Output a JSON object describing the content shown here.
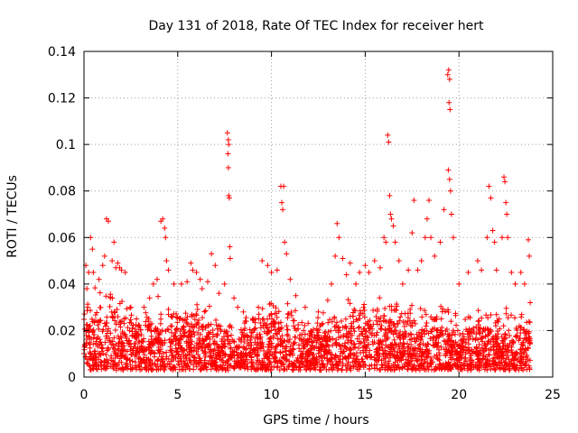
{
  "chart_data": {
    "type": "scatter",
    "title": "Day 131 of 2018, Rate Of TEC Index for receiver hert",
    "xlabel": "GPS time / hours",
    "ylabel": "ROTI / TECUs",
    "xlim": [
      0,
      25
    ],
    "ylim": [
      0,
      0.14
    ],
    "x_ticks": [
      0,
      5,
      10,
      15,
      20,
      25
    ],
    "y_ticks": [
      0,
      0.02,
      0.04,
      0.06,
      0.08,
      0.1,
      0.12,
      0.14
    ],
    "x_tick_labels": [
      "0",
      "5",
      "10",
      "15",
      "20",
      "25"
    ],
    "y_tick_labels": [
      "0",
      "0.02",
      "0.04",
      "0.06",
      "0.08",
      "0.1",
      "0.12",
      "0.14"
    ],
    "grid": true,
    "marker": "plus",
    "color": "#ff0000",
    "series": [
      {
        "name": "",
        "points": [
          [
            0.1,
            0.048
          ],
          [
            0.15,
            0.038
          ],
          [
            0.2,
            0.03
          ],
          [
            0.25,
            0.045
          ],
          [
            0.35,
            0.06
          ],
          [
            0.45,
            0.055
          ],
          [
            0.5,
            0.045
          ],
          [
            0.8,
            0.042
          ],
          [
            1.0,
            0.048
          ],
          [
            1.1,
            0.052
          ],
          [
            1.2,
            0.068
          ],
          [
            1.3,
            0.067
          ],
          [
            1.5,
            0.05
          ],
          [
            1.6,
            0.058
          ],
          [
            1.7,
            0.047
          ],
          [
            1.8,
            0.049
          ],
          [
            1.9,
            0.047
          ],
          [
            2.0,
            0.046
          ],
          [
            2.2,
            0.045
          ],
          [
            2.5,
            0.03
          ],
          [
            2.8,
            0.025
          ],
          [
            3.2,
            0.03
          ],
          [
            3.5,
            0.034
          ],
          [
            3.7,
            0.04
          ],
          [
            3.9,
            0.042
          ],
          [
            4.1,
            0.067
          ],
          [
            4.2,
            0.068
          ],
          [
            4.3,
            0.064
          ],
          [
            4.35,
            0.06
          ],
          [
            4.4,
            0.05
          ],
          [
            4.5,
            0.046
          ],
          [
            4.8,
            0.04
          ],
          [
            5.2,
            0.04
          ],
          [
            5.5,
            0.041
          ],
          [
            5.7,
            0.049
          ],
          [
            5.8,
            0.046
          ],
          [
            6.0,
            0.045
          ],
          [
            6.2,
            0.042
          ],
          [
            6.3,
            0.038
          ],
          [
            6.6,
            0.041
          ],
          [
            6.8,
            0.053
          ],
          [
            7.0,
            0.048
          ],
          [
            7.2,
            0.036
          ],
          [
            7.5,
            0.04
          ],
          [
            7.65,
            0.105
          ],
          [
            7.7,
            0.102
          ],
          [
            7.72,
            0.1
          ],
          [
            7.68,
            0.096
          ],
          [
            7.7,
            0.09
          ],
          [
            7.72,
            0.078
          ],
          [
            7.75,
            0.077
          ],
          [
            7.78,
            0.056
          ],
          [
            7.8,
            0.051
          ],
          [
            8.0,
            0.034
          ],
          [
            8.2,
            0.03
          ],
          [
            8.5,
            0.028
          ],
          [
            9.0,
            0.025
          ],
          [
            9.3,
            0.03
          ],
          [
            9.5,
            0.05
          ],
          [
            9.8,
            0.048
          ],
          [
            10.0,
            0.045
          ],
          [
            10.3,
            0.046
          ],
          [
            10.5,
            0.082
          ],
          [
            10.55,
            0.075
          ],
          [
            10.6,
            0.072
          ],
          [
            10.65,
            0.082
          ],
          [
            10.7,
            0.058
          ],
          [
            10.8,
            0.053
          ],
          [
            11.0,
            0.042
          ],
          [
            11.3,
            0.035
          ],
          [
            11.8,
            0.03
          ],
          [
            12.5,
            0.028
          ],
          [
            13.0,
            0.033
          ],
          [
            13.2,
            0.04
          ],
          [
            13.4,
            0.052
          ],
          [
            13.5,
            0.066
          ],
          [
            13.6,
            0.06
          ],
          [
            13.8,
            0.051
          ],
          [
            14.0,
            0.044
          ],
          [
            14.2,
            0.049
          ],
          [
            14.5,
            0.04
          ],
          [
            14.7,
            0.045
          ],
          [
            15.0,
            0.048
          ],
          [
            15.2,
            0.045
          ],
          [
            15.5,
            0.05
          ],
          [
            15.8,
            0.047
          ],
          [
            16.0,
            0.06
          ],
          [
            16.1,
            0.058
          ],
          [
            16.2,
            0.104
          ],
          [
            16.25,
            0.101
          ],
          [
            16.3,
            0.078
          ],
          [
            16.35,
            0.07
          ],
          [
            16.4,
            0.068
          ],
          [
            16.5,
            0.065
          ],
          [
            16.6,
            0.058
          ],
          [
            16.8,
            0.05
          ],
          [
            17.0,
            0.04
          ],
          [
            17.3,
            0.046
          ],
          [
            17.5,
            0.062
          ],
          [
            17.6,
            0.076
          ],
          [
            17.8,
            0.046
          ],
          [
            18.0,
            0.05
          ],
          [
            18.2,
            0.06
          ],
          [
            18.3,
            0.068
          ],
          [
            18.4,
            0.076
          ],
          [
            18.5,
            0.06
          ],
          [
            18.7,
            0.052
          ],
          [
            19.0,
            0.058
          ],
          [
            19.2,
            0.072
          ],
          [
            19.4,
            0.13
          ],
          [
            19.45,
            0.132
          ],
          [
            19.5,
            0.128
          ],
          [
            19.47,
            0.118
          ],
          [
            19.52,
            0.115
          ],
          [
            19.43,
            0.089
          ],
          [
            19.5,
            0.085
          ],
          [
            19.55,
            0.08
          ],
          [
            19.6,
            0.07
          ],
          [
            19.7,
            0.06
          ],
          [
            20.0,
            0.04
          ],
          [
            20.5,
            0.045
          ],
          [
            21.0,
            0.05
          ],
          [
            21.2,
            0.046
          ],
          [
            21.5,
            0.06
          ],
          [
            21.6,
            0.082
          ],
          [
            21.7,
            0.077
          ],
          [
            21.8,
            0.063
          ],
          [
            21.9,
            0.058
          ],
          [
            22.0,
            0.046
          ],
          [
            22.3,
            0.06
          ],
          [
            22.4,
            0.086
          ],
          [
            22.45,
            0.084
          ],
          [
            22.5,
            0.075
          ],
          [
            22.55,
            0.07
          ],
          [
            22.6,
            0.06
          ],
          [
            22.8,
            0.045
          ],
          [
            23.0,
            0.04
          ],
          [
            23.3,
            0.045
          ],
          [
            23.5,
            0.04
          ],
          [
            23.7,
            0.059
          ],
          [
            23.75,
            0.052
          ],
          [
            23.8,
            0.032
          ]
        ]
      }
    ],
    "dense_band_profile": {
      "description_of_data": "upper envelope (ROTI) of the dense cloud of measurements per hour",
      "hours": [
        0,
        1,
        2,
        3,
        4,
        5,
        6,
        7,
        8,
        9,
        10,
        11,
        12,
        13,
        14,
        15,
        16,
        17,
        18,
        19,
        20,
        21,
        22,
        23,
        23.8
      ],
      "upper": [
        0.038,
        0.04,
        0.034,
        0.028,
        0.034,
        0.032,
        0.034,
        0.028,
        0.024,
        0.028,
        0.036,
        0.03,
        0.024,
        0.028,
        0.034,
        0.034,
        0.034,
        0.032,
        0.032,
        0.036,
        0.026,
        0.03,
        0.028,
        0.028,
        0.026
      ],
      "lower": 0.003
    }
  }
}
